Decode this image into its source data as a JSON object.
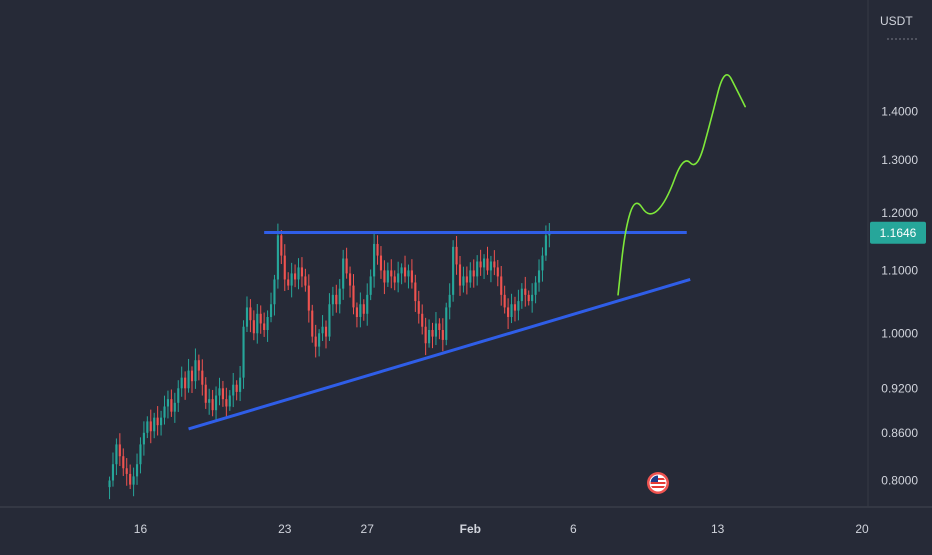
{
  "colors": {
    "background": "#262a37",
    "up_candle": "#26a69a",
    "down_candle": "#ef5350",
    "trendline": "#2f5ee8",
    "projection": "#7ee83a",
    "price_tag_bg": "#26a69a",
    "axis_text": "#d1d4dc"
  },
  "chart_data": {
    "type": "candlestick",
    "y_axis": {
      "unit": "USDT",
      "scale": "log",
      "range": [
        0.785,
        1.62
      ],
      "ticks": [
        {
          "value": 0.8,
          "label": "0.8000"
        },
        {
          "value": 0.86,
          "label": "0.8600"
        },
        {
          "value": 0.92,
          "label": "0.9200"
        },
        {
          "value": 1.0,
          "label": "1.0000"
        },
        {
          "value": 1.1,
          "label": "1.1000"
        },
        {
          "value": 1.2,
          "label": "1.2000"
        },
        {
          "value": 1.3,
          "label": "1.3000"
        },
        {
          "value": 1.4,
          "label": "1.4000"
        }
      ]
    },
    "x_axis": {
      "range": [
        "2023-01-12",
        "2023-02-20"
      ],
      "ticks": [
        {
          "date": "2023-01-16",
          "label": "16",
          "bold": false
        },
        {
          "date": "2023-01-23",
          "label": "23",
          "bold": false
        },
        {
          "date": "2023-01-27",
          "label": "27",
          "bold": false
        },
        {
          "date": "2023-02-01",
          "label": "Feb",
          "bold": true
        },
        {
          "date": "2023-02-06",
          "label": "6",
          "bold": false
        },
        {
          "date": "2023-02-13",
          "label": "13",
          "bold": false
        },
        {
          "date": "2023-02-20",
          "label": "20",
          "bold": false
        }
      ]
    },
    "last_price": {
      "value": 1.1646,
      "label": "1.1646"
    },
    "series": [
      {
        "name": "",
        "interval_hours": 4,
        "start": "2023-01-14T12:00",
        "closes": [
          0.8,
          0.82,
          0.845,
          0.83,
          0.815,
          0.808,
          0.795,
          0.805,
          0.82,
          0.845,
          0.86,
          0.875,
          0.862,
          0.88,
          0.87,
          0.88,
          0.895,
          0.905,
          0.888,
          0.9,
          0.92,
          0.935,
          0.92,
          0.945,
          0.93,
          0.96,
          0.945,
          0.925,
          0.9,
          0.905,
          0.89,
          0.91,
          0.92,
          0.905,
          0.895,
          0.91,
          0.925,
          0.915,
          0.935,
          1.01,
          1.04,
          1.02,
          1.0,
          1.03,
          1.015,
          1.005,
          1.025,
          1.045,
          1.085,
          1.16,
          1.125,
          1.085,
          1.075,
          1.095,
          1.085,
          1.105,
          1.09,
          1.075,
          1.035,
          0.995,
          0.98,
          1.0,
          1.01,
          0.995,
          1.045,
          1.06,
          1.045,
          1.07,
          1.12,
          1.095,
          1.075,
          1.04,
          1.025,
          1.045,
          1.03,
          1.06,
          1.09,
          1.145,
          1.125,
          1.1,
          1.08,
          1.1,
          1.09,
          1.08,
          1.095,
          1.105,
          1.09,
          1.1,
          1.08,
          1.05,
          1.03,
          1.01,
          0.985,
          1.005,
          0.995,
          1.015,
          1.005,
          0.99,
          1.04,
          1.06,
          1.14,
          1.11,
          1.075,
          1.09,
          1.08,
          1.1,
          1.09,
          1.115,
          1.105,
          1.12,
          1.1,
          1.115,
          1.105,
          1.09,
          1.06,
          1.04,
          1.025,
          1.045,
          1.035,
          1.05,
          1.07,
          1.06,
          1.05,
          1.06,
          1.08,
          1.1,
          1.125,
          1.16,
          1.1646
        ]
      }
    ],
    "annotations": [
      {
        "kind": "horizontal_resistance",
        "from": "2023-01-22T00:00",
        "to": "2023-02-11T12:00",
        "value": 1.165
      },
      {
        "kind": "rising_support",
        "from": [
          "2023-01-18T08:00",
          0.865
        ],
        "to": [
          "2023-02-11T16:00",
          1.085
        ]
      },
      {
        "kind": "projected_path",
        "points": [
          [
            "2023-02-08T04:00",
            1.06
          ],
          [
            "2023-02-08T12:00",
            1.17
          ],
          [
            "2023-02-09T00:00",
            1.23
          ],
          [
            "2023-02-09T16:00",
            1.19
          ],
          [
            "2023-02-10T12:00",
            1.22
          ],
          [
            "2023-02-11T08:00",
            1.31
          ],
          [
            "2023-02-12T00:00",
            1.28
          ],
          [
            "2023-02-12T16:00",
            1.38
          ],
          [
            "2023-02-13T08:00",
            1.5
          ],
          [
            "2023-02-14T00:00",
            1.44
          ],
          [
            "2023-02-14T08:00",
            1.41
          ]
        ]
      }
    ]
  }
}
